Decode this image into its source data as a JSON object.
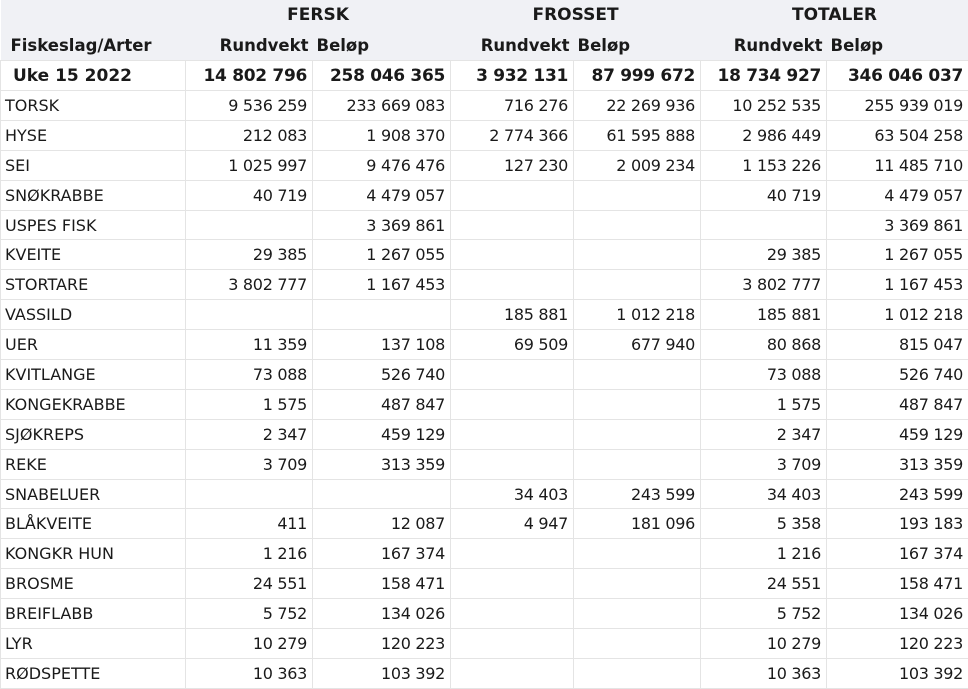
{
  "header": {
    "groups": [
      "FERSK",
      "FROSSET",
      "TOTALER"
    ],
    "label_header": "Fiskeslag/Arter",
    "subheaders": [
      "Rundvekt",
      "Beløp",
      "Rundvekt",
      "Beløp",
      "Rundvekt",
      "Beløp"
    ]
  },
  "total": {
    "name": "Uke 15 2022",
    "values": [
      "14 802 796",
      "258 046 365",
      "3 932 131",
      "87 999 672",
      "18 734 927",
      "346 046 037"
    ]
  },
  "rows": [
    {
      "name": "TORSK",
      "values": [
        "9 536 259",
        "233 669 083",
        "716 276",
        "22 269 936",
        "10 252 535",
        "255 939 019"
      ]
    },
    {
      "name": "HYSE",
      "values": [
        "212 083",
        "1 908 370",
        "2 774 366",
        "61 595 888",
        "2 986 449",
        "63 504 258"
      ]
    },
    {
      "name": "SEI",
      "values": [
        "1 025 997",
        "9 476 476",
        "127 230",
        "2 009 234",
        "1 153 226",
        "11 485 710"
      ]
    },
    {
      "name": "SNØKRABBE",
      "values": [
        "40 719",
        "4 479 057",
        "",
        "",
        "40 719",
        "4 479 057"
      ]
    },
    {
      "name": "USPES FISK",
      "values": [
        "",
        "3 369 861",
        "",
        "",
        "",
        "3 369 861"
      ]
    },
    {
      "name": "KVEITE",
      "values": [
        "29 385",
        "1 267 055",
        "",
        "",
        "29 385",
        "1 267 055"
      ]
    },
    {
      "name": "STORTARE",
      "values": [
        "3 802 777",
        "1 167 453",
        "",
        "",
        "3 802 777",
        "1 167 453"
      ]
    },
    {
      "name": "VASSILD",
      "values": [
        "",
        "",
        "185 881",
        "1 012 218",
        "185 881",
        "1 012 218"
      ]
    },
    {
      "name": "UER",
      "values": [
        "11 359",
        "137 108",
        "69 509",
        "677 940",
        "80 868",
        "815 047"
      ]
    },
    {
      "name": "KVITLANGE",
      "values": [
        "73 088",
        "526 740",
        "",
        "",
        "73 088",
        "526 740"
      ]
    },
    {
      "name": "KONGEKRABBE",
      "values": [
        "1 575",
        "487 847",
        "",
        "",
        "1 575",
        "487 847"
      ]
    },
    {
      "name": "SJØKREPS",
      "values": [
        "2 347",
        "459 129",
        "",
        "",
        "2 347",
        "459 129"
      ]
    },
    {
      "name": "REKE",
      "values": [
        "3 709",
        "313 359",
        "",
        "",
        "3 709",
        "313 359"
      ]
    },
    {
      "name": "SNABELUER",
      "values": [
        "",
        "",
        "34 403",
        "243 599",
        "34 403",
        "243 599"
      ]
    },
    {
      "name": "BLÅKVEITE",
      "values": [
        "411",
        "12 087",
        "4 947",
        "181 096",
        "5 358",
        "193 183"
      ]
    },
    {
      "name": "KONGKR HUN",
      "values": [
        "1 216",
        "167 374",
        "",
        "",
        "1 216",
        "167 374"
      ]
    },
    {
      "name": "BROSME",
      "values": [
        "24 551",
        "158 471",
        "",
        "",
        "24 551",
        "158 471"
      ]
    },
    {
      "name": "BREIFLABB",
      "values": [
        "5 752",
        "134 026",
        "",
        "",
        "5 752",
        "134 026"
      ]
    },
    {
      "name": "LYR",
      "values": [
        "10 279",
        "120 223",
        "",
        "",
        "10 279",
        "120 223"
      ]
    },
    {
      "name": "RØDSPETTE",
      "values": [
        "10 363",
        "103 392",
        "",
        "",
        "10 363",
        "103 392"
      ]
    }
  ]
}
